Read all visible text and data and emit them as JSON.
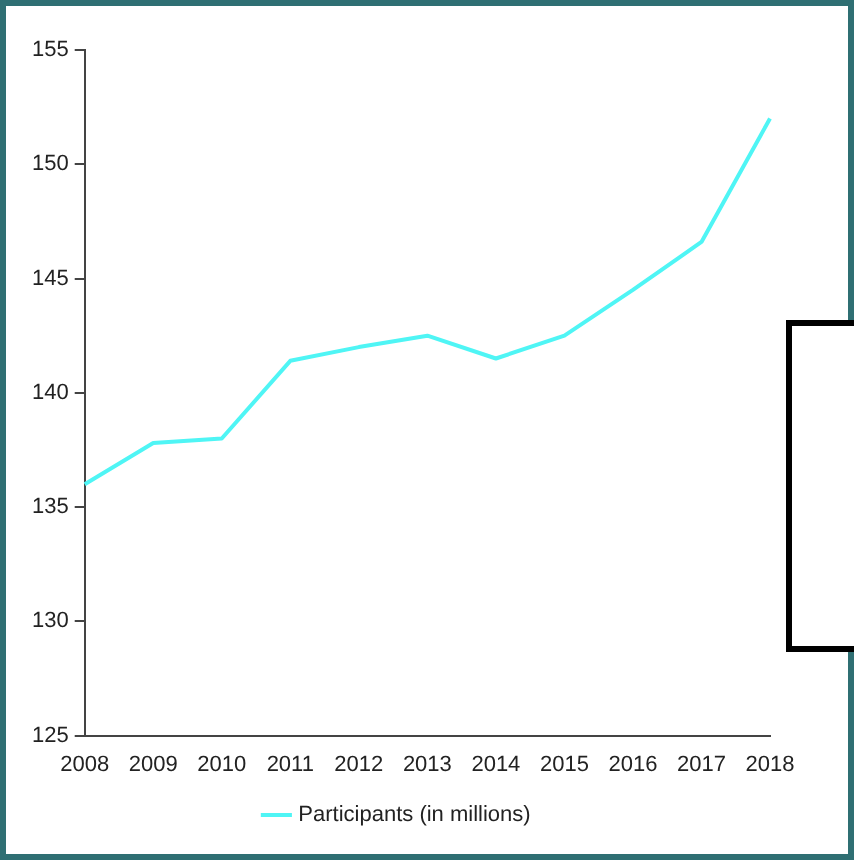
{
  "chart_data": {
    "type": "line",
    "categories": [
      "2008",
      "2009",
      "2010",
      "2011",
      "2012",
      "2013",
      "2014",
      "2015",
      "2016",
      "2017",
      "2018"
    ],
    "series": [
      {
        "name": "Participants (in millions)",
        "color": "#4ff5f5",
        "values": [
          136,
          137.8,
          138,
          141.4,
          142,
          142.5,
          141.5,
          142.5,
          144.5,
          146.6,
          152
        ]
      }
    ],
    "ylim": [
      125,
      155
    ],
    "yticks": [
      125,
      130,
      135,
      140,
      145,
      150,
      155
    ],
    "grid": false,
    "legend": "bottom",
    "marker": "none",
    "line_style": "solid"
  }
}
